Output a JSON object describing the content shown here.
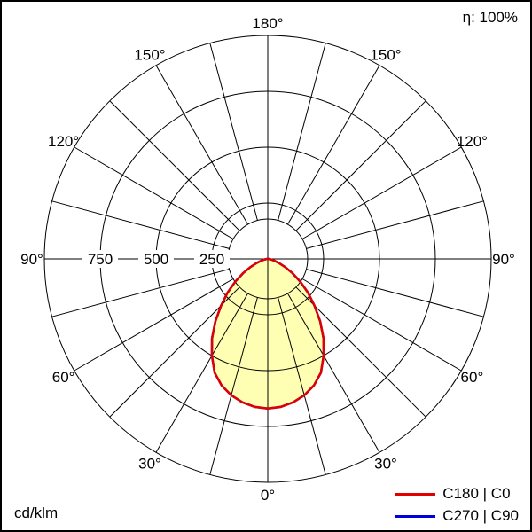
{
  "header": {
    "eta_label": "η: 100%"
  },
  "footer": {
    "unit_label": "cd/klm"
  },
  "legend": {
    "items": [
      {
        "label": "C180 | C0",
        "color": "#e00000"
      },
      {
        "label": "C270 | C90",
        "color": "#0000dd"
      }
    ]
  },
  "chart_data": {
    "type": "line",
    "subtype": "polar luminous intensity distribution curve",
    "units": "cd/klm",
    "eta": "100%",
    "angle_tick_labels": [
      "0°",
      "30°",
      "60°",
      "90°",
      "120°",
      "150°",
      "180°"
    ],
    "angle_step_deg": 15,
    "r_ticks": [
      250,
      500,
      750
    ],
    "r_max": 1000,
    "grid": true,
    "legend_position": "bottom-right",
    "fill_color": "#ffffb3",
    "gamma_deg": [
      0,
      5,
      10,
      15,
      20,
      25,
      30,
      35,
      40,
      45,
      50,
      55,
      60,
      65,
      70,
      75,
      80,
      85,
      90,
      95,
      100,
      105,
      110,
      115,
      120,
      125,
      130,
      135,
      140,
      145,
      150,
      155,
      160,
      165,
      170,
      175,
      180
    ],
    "series": [
      {
        "name": "C180 | C0",
        "color": "#e00000",
        "values": [
          670,
          665,
          652,
          632,
          603,
          562,
          500,
          435,
          365,
          295,
          235,
          178,
          128,
          86,
          52,
          28,
          14,
          6,
          2,
          0,
          0,
          0,
          0,
          0,
          0,
          0,
          0,
          0,
          0,
          0,
          0,
          0,
          0,
          0,
          0,
          0,
          0
        ]
      },
      {
        "name": "C270 | C90",
        "color": "#0000dd",
        "values": [
          670,
          665,
          652,
          632,
          603,
          562,
          500,
          435,
          365,
          295,
          235,
          178,
          128,
          86,
          52,
          28,
          14,
          6,
          2,
          0,
          0,
          0,
          0,
          0,
          0,
          0,
          0,
          0,
          0,
          0,
          0,
          0,
          0,
          0,
          0,
          0,
          0
        ]
      }
    ]
  }
}
